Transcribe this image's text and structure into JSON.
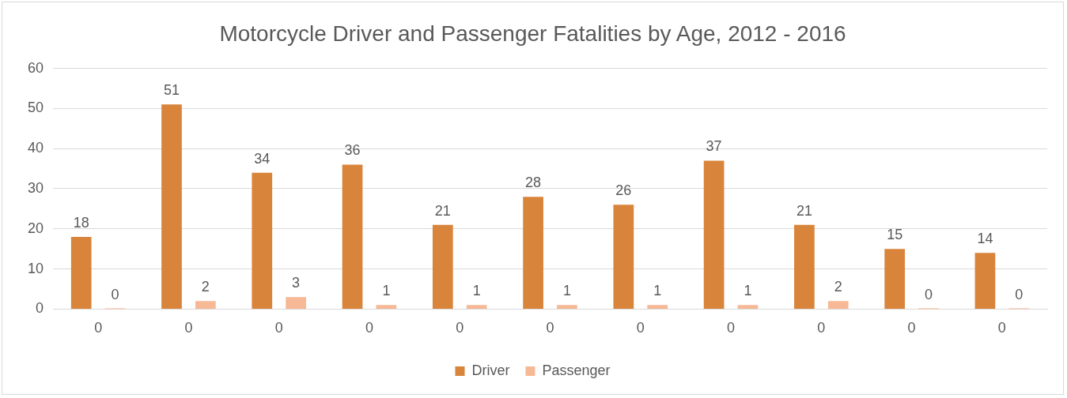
{
  "chart_data": {
    "type": "bar",
    "title": "Motorcycle Driver and Passenger Fatalities by Age, 2012 - 2016",
    "categories": [
      "0",
      "0",
      "0",
      "0",
      "0",
      "0",
      "0",
      "0",
      "0",
      "0",
      "0"
    ],
    "series": [
      {
        "name": "Driver",
        "color": "#d9843b",
        "values": [
          18,
          51,
          34,
          36,
          21,
          28,
          26,
          37,
          21,
          15,
          14
        ]
      },
      {
        "name": "Passenger",
        "color": "#f7b995",
        "values": [
          0,
          2,
          3,
          1,
          1,
          1,
          1,
          1,
          2,
          0,
          0
        ]
      }
    ],
    "ylim": [
      0,
      60
    ],
    "yticks": [
      0,
      10,
      20,
      30,
      40,
      50,
      60
    ],
    "grid": "y",
    "legend": "bottom",
    "data_labels": true
  }
}
